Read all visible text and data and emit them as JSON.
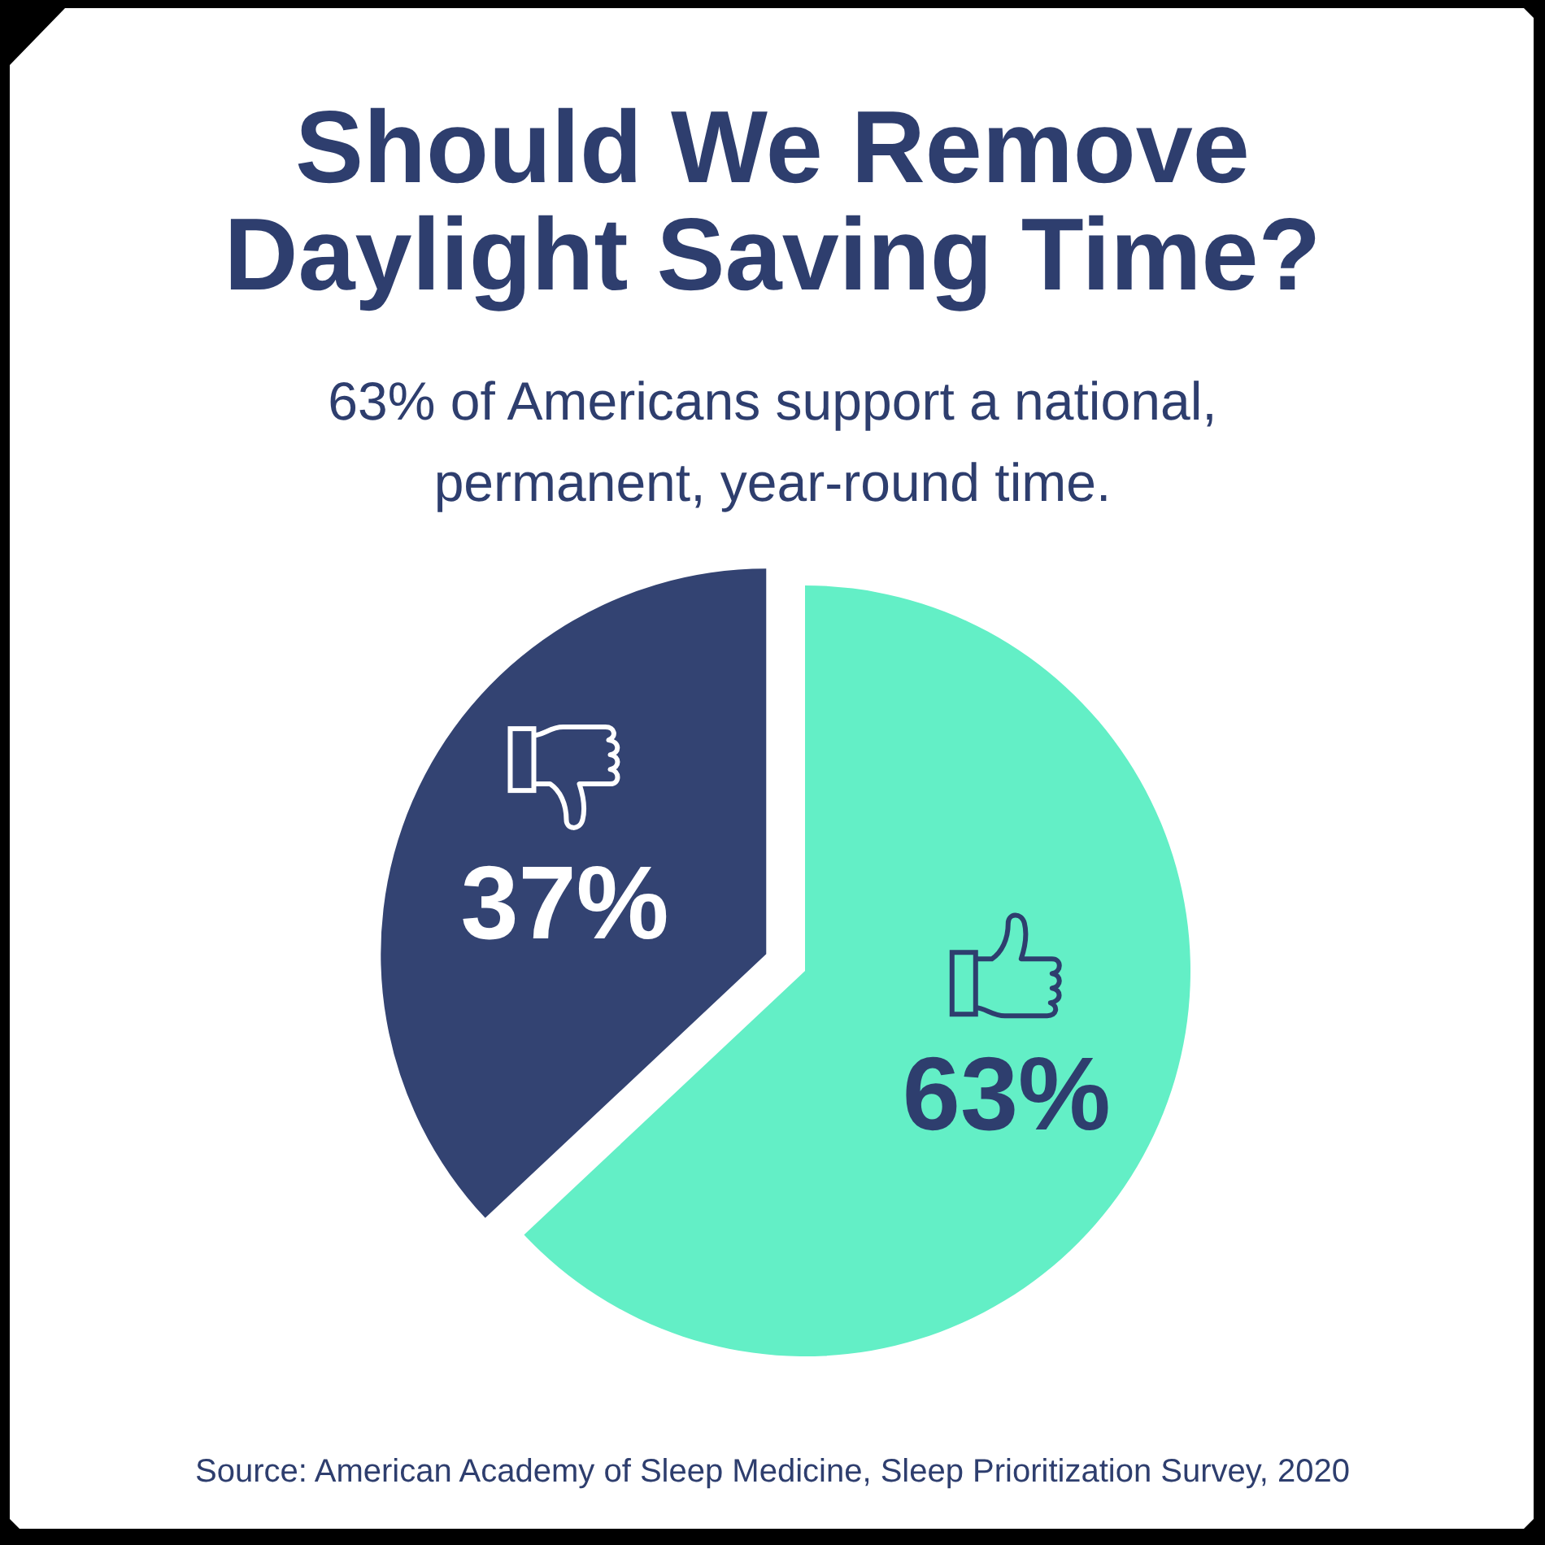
{
  "chart_data": {
    "type": "pie",
    "title": "Should We Remove Daylight Saving Time?",
    "subtitle": "63% of Americans support a national, permanent, year-round time.",
    "annotations": [
      "Source: American Academy of Sleep Medicine, Sleep Prioritization Survey, 2020"
    ],
    "categories": [
      null,
      null
    ],
    "values": [
      63,
      37
    ],
    "colors": [
      "#63efc6",
      "#334372"
    ],
    "value_labels": [
      "63%",
      "37%"
    ]
  }
}
